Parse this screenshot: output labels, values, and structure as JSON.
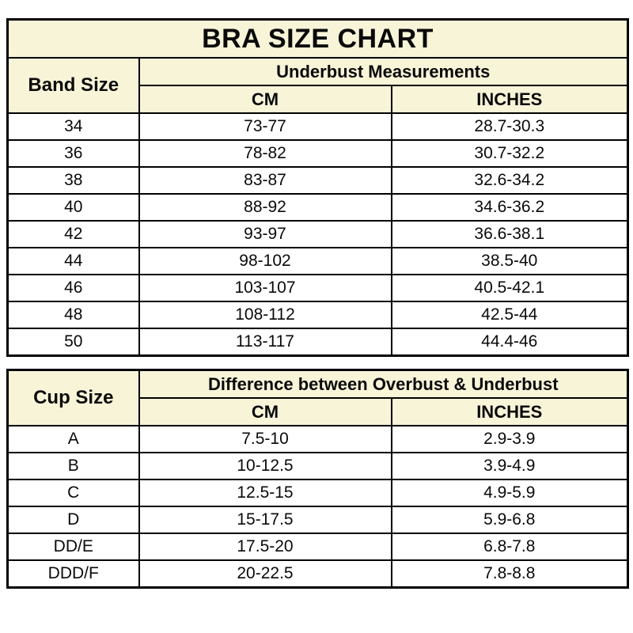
{
  "page": {
    "title": "BRA SIZE CHART"
  },
  "colors": {
    "header_bg": "#F8F4D8",
    "border": "#000000",
    "row_bg": "#FFFFFF"
  },
  "band_table": {
    "corner_header": "Band Size",
    "group_header": "Underbust Measurements",
    "columns": {
      "cm": "CM",
      "inches": "INCHES"
    },
    "rows": [
      {
        "band": "34",
        "cm": "73-77",
        "inches": "28.7-30.3"
      },
      {
        "band": "36",
        "cm": "78-82",
        "inches": "30.7-32.2"
      },
      {
        "band": "38",
        "cm": "83-87",
        "inches": "32.6-34.2"
      },
      {
        "band": "40",
        "cm": "88-92",
        "inches": "34.6-36.2"
      },
      {
        "band": "42",
        "cm": "93-97",
        "inches": "36.6-38.1"
      },
      {
        "band": "44",
        "cm": "98-102",
        "inches": "38.5-40"
      },
      {
        "band": "46",
        "cm": "103-107",
        "inches": "40.5-42.1"
      },
      {
        "band": "48",
        "cm": "108-112",
        "inches": "42.5-44"
      },
      {
        "band": "50",
        "cm": "113-117",
        "inches": "44.4-46"
      }
    ]
  },
  "cup_table": {
    "corner_header": "Cup Size",
    "group_header": "Difference between Overbust & Underbust",
    "columns": {
      "cm": "CM",
      "inches": "INCHES"
    },
    "rows": [
      {
        "cup": "A",
        "cm": "7.5-10",
        "inches": "2.9-3.9"
      },
      {
        "cup": "B",
        "cm": "10-12.5",
        "inches": "3.9-4.9"
      },
      {
        "cup": "C",
        "cm": "12.5-15",
        "inches": "4.9-5.9"
      },
      {
        "cup": "D",
        "cm": "15-17.5",
        "inches": "5.9-6.8"
      },
      {
        "cup": "DD/E",
        "cm": "17.5-20",
        "inches": "6.8-7.8"
      },
      {
        "cup": "DDD/F",
        "cm": "20-22.5",
        "inches": "7.8-8.8"
      }
    ]
  },
  "chart_data": [
    {
      "type": "table",
      "title": "BRA SIZE CHART",
      "section": "Underbust Measurements",
      "columns": [
        "Band Size",
        "CM",
        "INCHES"
      ],
      "rows": [
        [
          "34",
          "73-77",
          "28.7-30.3"
        ],
        [
          "36",
          "78-82",
          "30.7-32.2"
        ],
        [
          "38",
          "83-87",
          "32.6-34.2"
        ],
        [
          "40",
          "88-92",
          "34.6-36.2"
        ],
        [
          "42",
          "93-97",
          "36.6-38.1"
        ],
        [
          "44",
          "98-102",
          "38.5-40"
        ],
        [
          "46",
          "103-107",
          "40.5-42.1"
        ],
        [
          "48",
          "108-112",
          "42.5-44"
        ],
        [
          "50",
          "113-117",
          "44.4-46"
        ]
      ]
    },
    {
      "type": "table",
      "title": "BRA SIZE CHART",
      "section": "Difference between Overbust & Underbust",
      "columns": [
        "Cup Size",
        "CM",
        "INCHES"
      ],
      "rows": [
        [
          "A",
          "7.5-10",
          "2.9-3.9"
        ],
        [
          "B",
          "10-12.5",
          "3.9-4.9"
        ],
        [
          "C",
          "12.5-15",
          "4.9-5.9"
        ],
        [
          "D",
          "15-17.5",
          "5.9-6.8"
        ],
        [
          "DD/E",
          "17.5-20",
          "6.8-7.8"
        ],
        [
          "DDD/F",
          "20-22.5",
          "7.8-8.8"
        ]
      ]
    }
  ]
}
